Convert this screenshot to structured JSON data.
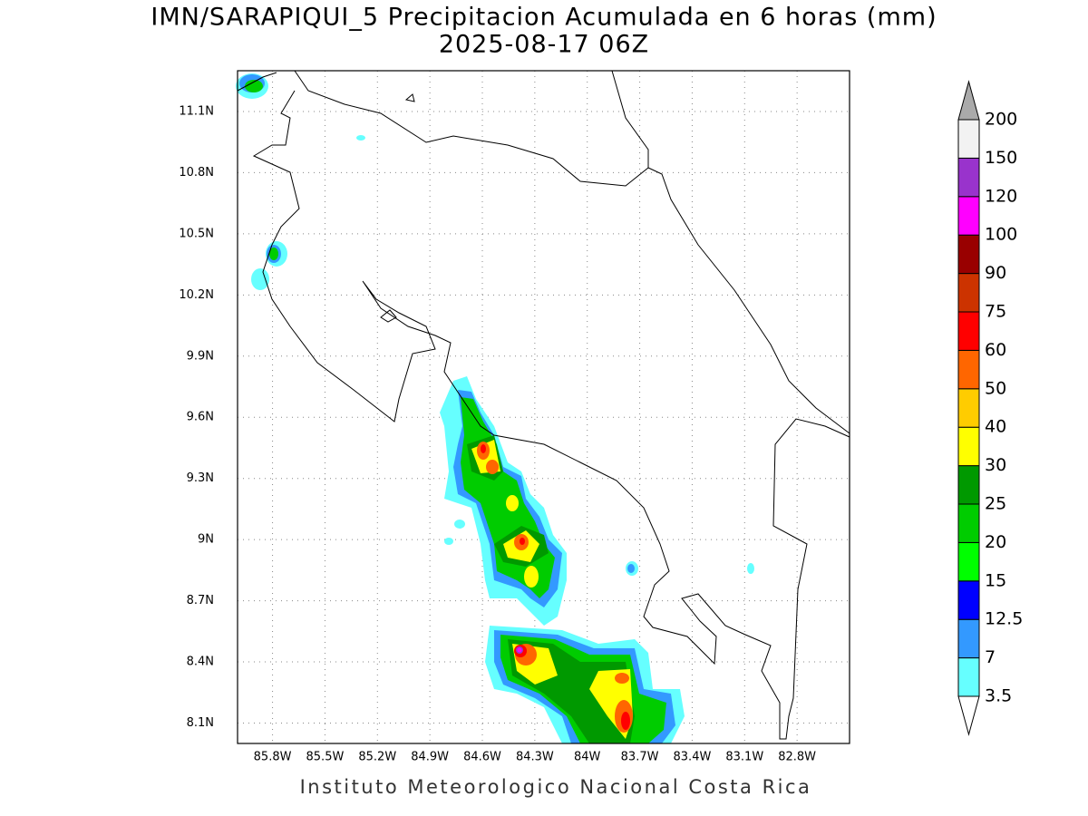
{
  "header": {
    "title": "IMN/SARAPIQUI_5 Precipitacion Acumulada en 6 horas (mm)",
    "subtitle": "2025-08-17 06Z"
  },
  "map": {
    "xlim": [
      -86.0,
      -82.5
    ],
    "ylim": [
      8.0,
      11.3
    ],
    "xticks": [
      {
        "value": -85.8,
        "label": "85.8W"
      },
      {
        "value": -85.5,
        "label": "85.5W"
      },
      {
        "value": -85.2,
        "label": "85.2W"
      },
      {
        "value": -84.9,
        "label": "84.9W"
      },
      {
        "value": -84.6,
        "label": "84.6W"
      },
      {
        "value": -84.3,
        "label": "84.3W"
      },
      {
        "value": -84.0,
        "label": "84W"
      },
      {
        "value": -83.7,
        "label": "83.7W"
      },
      {
        "value": -83.4,
        "label": "83.4W"
      },
      {
        "value": -83.1,
        "label": "83.1W"
      },
      {
        "value": -82.8,
        "label": "82.8W"
      }
    ],
    "yticks": [
      {
        "value": 8.1,
        "label": "8.1N"
      },
      {
        "value": 8.4,
        "label": "8.4N"
      },
      {
        "value": 8.7,
        "label": "8.7N"
      },
      {
        "value": 9.0,
        "label": "9N"
      },
      {
        "value": 9.3,
        "label": "9.3N"
      },
      {
        "value": 9.6,
        "label": "9.6N"
      },
      {
        "value": 9.9,
        "label": "9.9N"
      },
      {
        "value": 10.2,
        "label": "10.2N"
      },
      {
        "value": 10.5,
        "label": "10.5N"
      },
      {
        "value": 10.8,
        "label": "10.8N"
      },
      {
        "value": 11.1,
        "label": "11.1N"
      }
    ]
  },
  "colorbar": {
    "levels": [
      3.5,
      7,
      12.5,
      15,
      20,
      25,
      30,
      40,
      50,
      60,
      75,
      90,
      100,
      120,
      150,
      200
    ],
    "colors": [
      "#66ffff",
      "#3399ff",
      "#0000ff",
      "#00ff00",
      "#00cc00",
      "#009900",
      "#ffff00",
      "#ffcc00",
      "#ff6600",
      "#ff0000",
      "#cc3300",
      "#990000",
      "#ff00ff",
      "#9933cc",
      "#f2f2f2"
    ],
    "under_color": "#ffffff",
    "over_color": "#aaaaaa"
  },
  "footer": "Instituto Meteorologico Nacional Costa Rica"
}
